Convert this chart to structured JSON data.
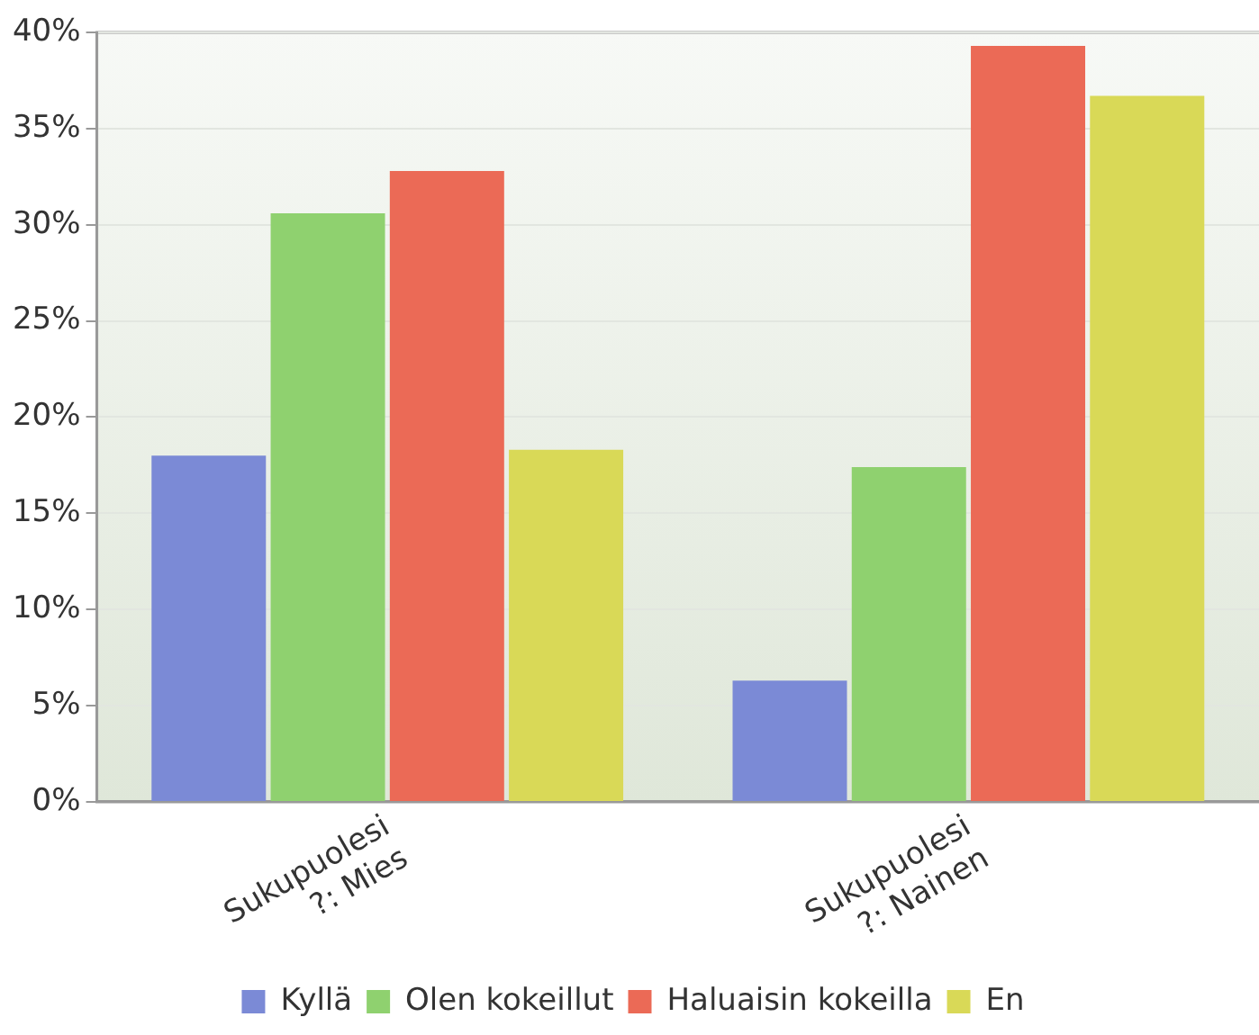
{
  "chart_data": {
    "type": "bar",
    "categories": [
      "Sukupuolesi ?: Mies",
      "Sukupuolesi ?: Nainen"
    ],
    "series": [
      {
        "name": "Kyllä",
        "color": "#7b8ad6",
        "values": [
          18,
          6.3
        ]
      },
      {
        "name": "Olen kokeillut",
        "color": "#8fd16f",
        "values": [
          30.6,
          17.4
        ]
      },
      {
        "name": "Haluaisin kokeilla",
        "color": "#eb6a56",
        "values": [
          32.8,
          39.3
        ]
      },
      {
        "name": "En",
        "color": "#d9d957",
        "values": [
          18.3,
          36.7
        ]
      }
    ],
    "ylim": [
      0,
      40
    ],
    "yticks": [
      {
        "value": 0,
        "label": "0%"
      },
      {
        "value": 5,
        "label": "5%"
      },
      {
        "value": 10,
        "label": "10%"
      },
      {
        "value": 15,
        "label": "15%"
      },
      {
        "value": 20,
        "label": "20%"
      },
      {
        "value": 25,
        "label": "25%"
      },
      {
        "value": 30,
        "label": "30%"
      },
      {
        "value": 35,
        "label": "35%"
      },
      {
        "value": 40,
        "label": "40%"
      }
    ],
    "grid": "y",
    "legend": "bottom"
  }
}
